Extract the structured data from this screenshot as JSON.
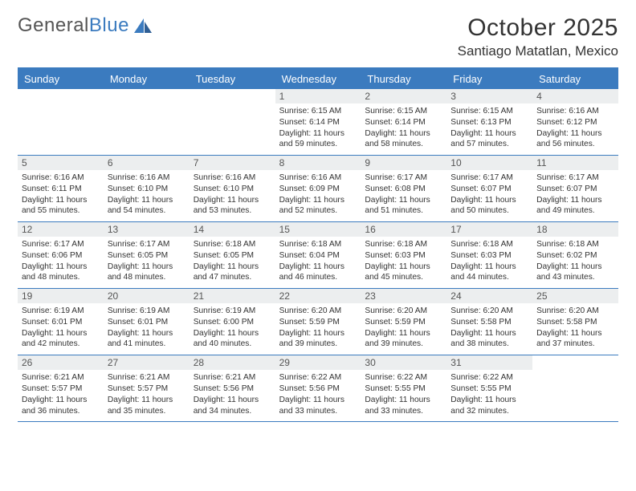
{
  "logo": {
    "text1": "General",
    "text2": "Blue"
  },
  "title": "October 2025",
  "location": "Santiago Matatlan, Mexico",
  "colors": {
    "accent": "#3b7bbf",
    "headerBg": "#3b7bbf",
    "dayNumBg": "#eceeef",
    "text": "#333333"
  },
  "dayNames": [
    "Sunday",
    "Monday",
    "Tuesday",
    "Wednesday",
    "Thursday",
    "Friday",
    "Saturday"
  ],
  "weeks": [
    [
      {
        "num": "",
        "sunrise": "",
        "sunset": "",
        "daylight": ""
      },
      {
        "num": "",
        "sunrise": "",
        "sunset": "",
        "daylight": ""
      },
      {
        "num": "",
        "sunrise": "",
        "sunset": "",
        "daylight": ""
      },
      {
        "num": "1",
        "sunrise": "Sunrise: 6:15 AM",
        "sunset": "Sunset: 6:14 PM",
        "daylight": "Daylight: 11 hours and 59 minutes."
      },
      {
        "num": "2",
        "sunrise": "Sunrise: 6:15 AM",
        "sunset": "Sunset: 6:14 PM",
        "daylight": "Daylight: 11 hours and 58 minutes."
      },
      {
        "num": "3",
        "sunrise": "Sunrise: 6:15 AM",
        "sunset": "Sunset: 6:13 PM",
        "daylight": "Daylight: 11 hours and 57 minutes."
      },
      {
        "num": "4",
        "sunrise": "Sunrise: 6:16 AM",
        "sunset": "Sunset: 6:12 PM",
        "daylight": "Daylight: 11 hours and 56 minutes."
      }
    ],
    [
      {
        "num": "5",
        "sunrise": "Sunrise: 6:16 AM",
        "sunset": "Sunset: 6:11 PM",
        "daylight": "Daylight: 11 hours and 55 minutes."
      },
      {
        "num": "6",
        "sunrise": "Sunrise: 6:16 AM",
        "sunset": "Sunset: 6:10 PM",
        "daylight": "Daylight: 11 hours and 54 minutes."
      },
      {
        "num": "7",
        "sunrise": "Sunrise: 6:16 AM",
        "sunset": "Sunset: 6:10 PM",
        "daylight": "Daylight: 11 hours and 53 minutes."
      },
      {
        "num": "8",
        "sunrise": "Sunrise: 6:16 AM",
        "sunset": "Sunset: 6:09 PM",
        "daylight": "Daylight: 11 hours and 52 minutes."
      },
      {
        "num": "9",
        "sunrise": "Sunrise: 6:17 AM",
        "sunset": "Sunset: 6:08 PM",
        "daylight": "Daylight: 11 hours and 51 minutes."
      },
      {
        "num": "10",
        "sunrise": "Sunrise: 6:17 AM",
        "sunset": "Sunset: 6:07 PM",
        "daylight": "Daylight: 11 hours and 50 minutes."
      },
      {
        "num": "11",
        "sunrise": "Sunrise: 6:17 AM",
        "sunset": "Sunset: 6:07 PM",
        "daylight": "Daylight: 11 hours and 49 minutes."
      }
    ],
    [
      {
        "num": "12",
        "sunrise": "Sunrise: 6:17 AM",
        "sunset": "Sunset: 6:06 PM",
        "daylight": "Daylight: 11 hours and 48 minutes."
      },
      {
        "num": "13",
        "sunrise": "Sunrise: 6:17 AM",
        "sunset": "Sunset: 6:05 PM",
        "daylight": "Daylight: 11 hours and 48 minutes."
      },
      {
        "num": "14",
        "sunrise": "Sunrise: 6:18 AM",
        "sunset": "Sunset: 6:05 PM",
        "daylight": "Daylight: 11 hours and 47 minutes."
      },
      {
        "num": "15",
        "sunrise": "Sunrise: 6:18 AM",
        "sunset": "Sunset: 6:04 PM",
        "daylight": "Daylight: 11 hours and 46 minutes."
      },
      {
        "num": "16",
        "sunrise": "Sunrise: 6:18 AM",
        "sunset": "Sunset: 6:03 PM",
        "daylight": "Daylight: 11 hours and 45 minutes."
      },
      {
        "num": "17",
        "sunrise": "Sunrise: 6:18 AM",
        "sunset": "Sunset: 6:03 PM",
        "daylight": "Daylight: 11 hours and 44 minutes."
      },
      {
        "num": "18",
        "sunrise": "Sunrise: 6:18 AM",
        "sunset": "Sunset: 6:02 PM",
        "daylight": "Daylight: 11 hours and 43 minutes."
      }
    ],
    [
      {
        "num": "19",
        "sunrise": "Sunrise: 6:19 AM",
        "sunset": "Sunset: 6:01 PM",
        "daylight": "Daylight: 11 hours and 42 minutes."
      },
      {
        "num": "20",
        "sunrise": "Sunrise: 6:19 AM",
        "sunset": "Sunset: 6:01 PM",
        "daylight": "Daylight: 11 hours and 41 minutes."
      },
      {
        "num": "21",
        "sunrise": "Sunrise: 6:19 AM",
        "sunset": "Sunset: 6:00 PM",
        "daylight": "Daylight: 11 hours and 40 minutes."
      },
      {
        "num": "22",
        "sunrise": "Sunrise: 6:20 AM",
        "sunset": "Sunset: 5:59 PM",
        "daylight": "Daylight: 11 hours and 39 minutes."
      },
      {
        "num": "23",
        "sunrise": "Sunrise: 6:20 AM",
        "sunset": "Sunset: 5:59 PM",
        "daylight": "Daylight: 11 hours and 39 minutes."
      },
      {
        "num": "24",
        "sunrise": "Sunrise: 6:20 AM",
        "sunset": "Sunset: 5:58 PM",
        "daylight": "Daylight: 11 hours and 38 minutes."
      },
      {
        "num": "25",
        "sunrise": "Sunrise: 6:20 AM",
        "sunset": "Sunset: 5:58 PM",
        "daylight": "Daylight: 11 hours and 37 minutes."
      }
    ],
    [
      {
        "num": "26",
        "sunrise": "Sunrise: 6:21 AM",
        "sunset": "Sunset: 5:57 PM",
        "daylight": "Daylight: 11 hours and 36 minutes."
      },
      {
        "num": "27",
        "sunrise": "Sunrise: 6:21 AM",
        "sunset": "Sunset: 5:57 PM",
        "daylight": "Daylight: 11 hours and 35 minutes."
      },
      {
        "num": "28",
        "sunrise": "Sunrise: 6:21 AM",
        "sunset": "Sunset: 5:56 PM",
        "daylight": "Daylight: 11 hours and 34 minutes."
      },
      {
        "num": "29",
        "sunrise": "Sunrise: 6:22 AM",
        "sunset": "Sunset: 5:56 PM",
        "daylight": "Daylight: 11 hours and 33 minutes."
      },
      {
        "num": "30",
        "sunrise": "Sunrise: 6:22 AM",
        "sunset": "Sunset: 5:55 PM",
        "daylight": "Daylight: 11 hours and 33 minutes."
      },
      {
        "num": "31",
        "sunrise": "Sunrise: 6:22 AM",
        "sunset": "Sunset: 5:55 PM",
        "daylight": "Daylight: 11 hours and 32 minutes."
      },
      {
        "num": "",
        "sunrise": "",
        "sunset": "",
        "daylight": ""
      }
    ]
  ]
}
